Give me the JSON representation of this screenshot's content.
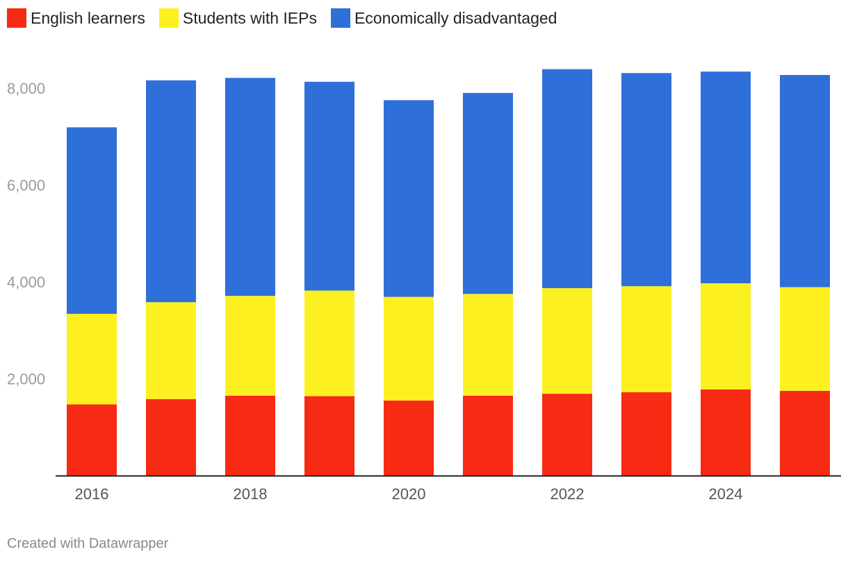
{
  "chart_data": {
    "type": "bar",
    "stacked": true,
    "categories": [
      "2016",
      "2017",
      "2018",
      "2019",
      "2020",
      "2021",
      "2022",
      "2023",
      "2024",
      "2025"
    ],
    "series": [
      {
        "name": "English learners",
        "color": "#f72a14",
        "values": [
          1470,
          1580,
          1650,
          1640,
          1550,
          1650,
          1690,
          1720,
          1780,
          1750
        ]
      },
      {
        "name": "Students with IEPs",
        "color": "#fdf020",
        "values": [
          1870,
          2000,
          2060,
          2180,
          2140,
          2100,
          2180,
          2190,
          2190,
          2140
        ]
      },
      {
        "name": "Economically disadvantaged",
        "color": "#2f6fd9",
        "values": [
          3850,
          4580,
          4500,
          4310,
          4060,
          4150,
          4520,
          4400,
          4370,
          4380
        ]
      }
    ],
    "x_tick_labels": [
      "2016",
      "",
      "2018",
      "",
      "2020",
      "",
      "2022",
      "",
      "2024",
      ""
    ],
    "y_ticks": [
      2000,
      4000,
      6000,
      8000
    ],
    "y_tick_labels": [
      "2,000",
      "4,000",
      "6,000",
      "8,000"
    ],
    "ylim": [
      0,
      8600
    ],
    "legend_position": "top-left",
    "title": "",
    "xlabel": "",
    "ylabel": ""
  },
  "footer": {
    "credit": "Created with Datawrapper"
  }
}
